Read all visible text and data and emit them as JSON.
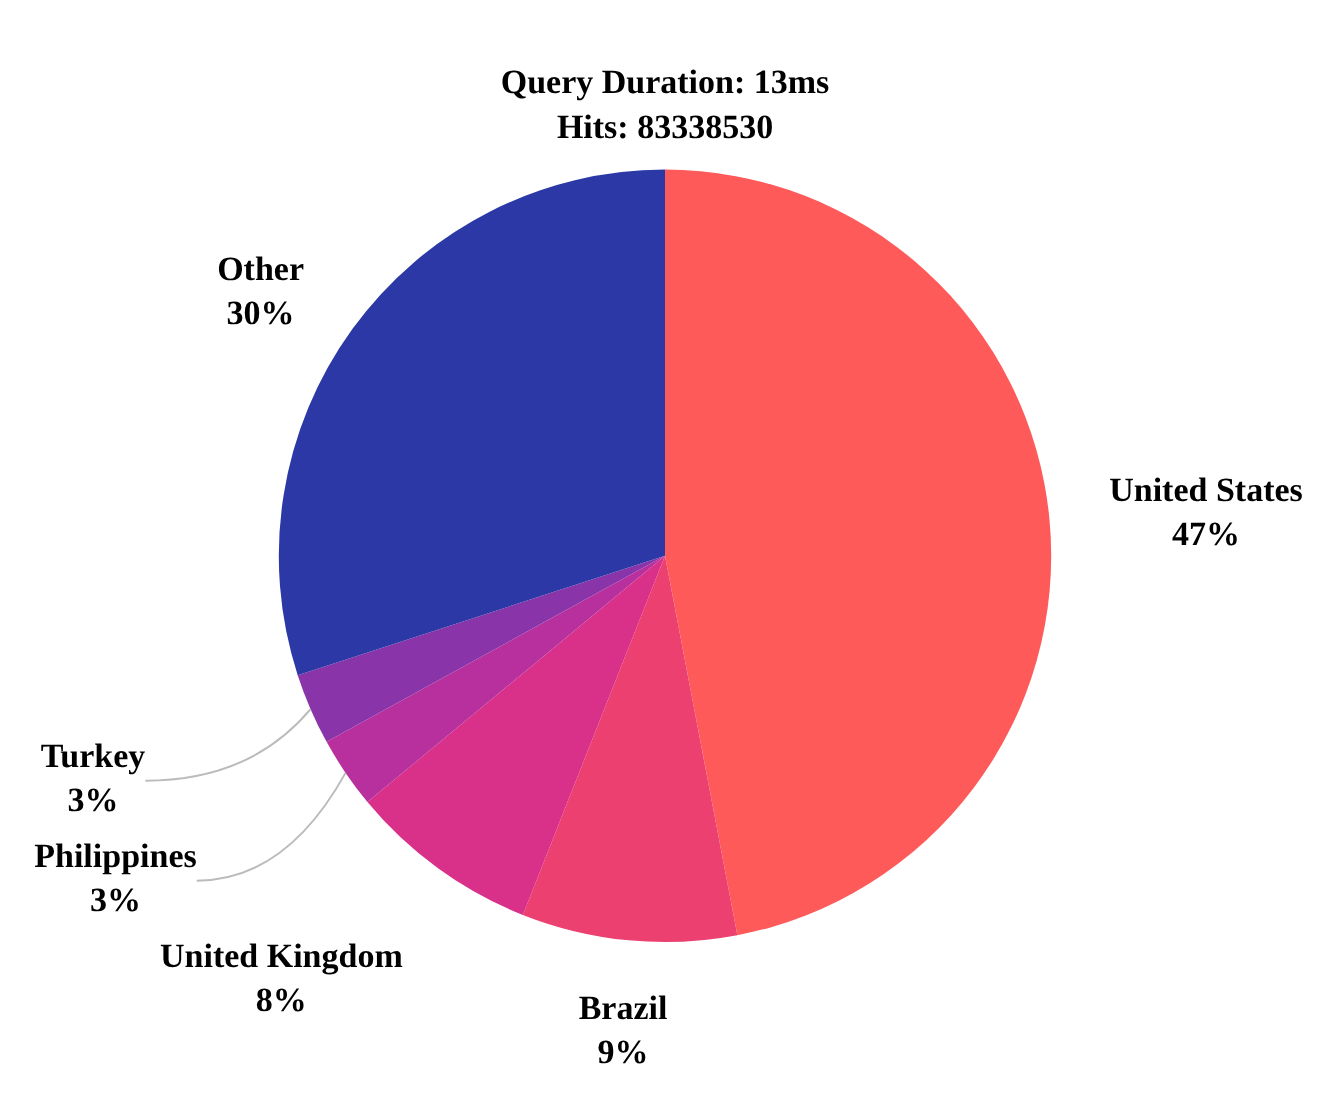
{
  "chart_data": {
    "type": "pie",
    "title": "Query Duration: 13ms",
    "subtitle": "Hits: 83338530",
    "categories": [
      "United States",
      "Brazil",
      "United Kingdom",
      "Philippines",
      "Turkey",
      "Other"
    ],
    "values": [
      47,
      9,
      8,
      3,
      3,
      30
    ],
    "colors": [
      "#ff5a5a",
      "#ec4070",
      "#d9308a",
      "#b8309e",
      "#8a34aa",
      "#2b38a6"
    ],
    "value_labels": [
      "47%",
      "9%",
      "8%",
      "3%",
      "3%",
      "30%"
    ]
  }
}
